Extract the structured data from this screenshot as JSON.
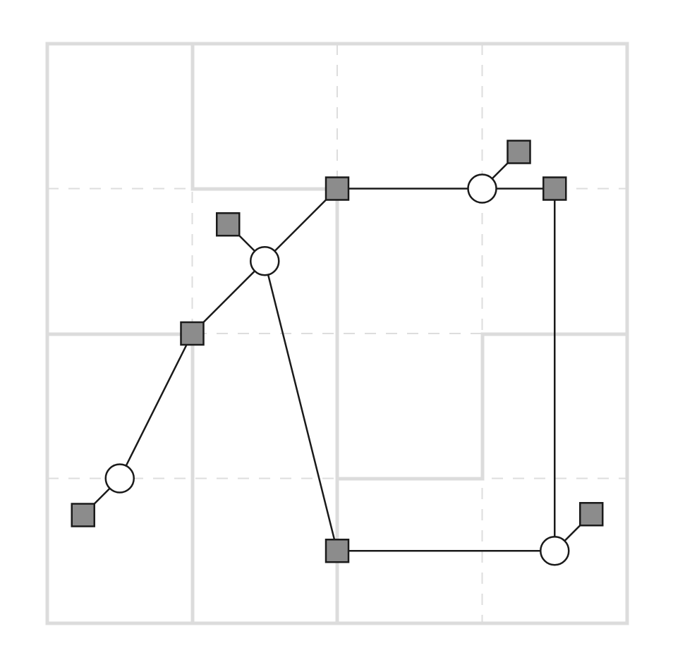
{
  "diagram": {
    "grid": {
      "columns": 4,
      "rows": 4
    },
    "colors": {
      "background": "#ffffff",
      "grid": "#dddddd",
      "walls": "#dcdcdc",
      "edges": "#1a1a1a",
      "square_fill": "#8c8c8c",
      "circle_fill": "#ffffff"
    },
    "nodes": [
      {
        "id": "s1",
        "shape": "square",
        "col": 2,
        "row": 1
      },
      {
        "id": "c1",
        "shape": "circle",
        "col": 3,
        "row": 1
      },
      {
        "id": "s2",
        "shape": "square",
        "col": 3.5,
        "row": 1
      },
      {
        "id": "c2",
        "shape": "circle",
        "col": 1.5,
        "row": 1.5
      },
      {
        "id": "s3",
        "shape": "square",
        "col": 1,
        "row": 2
      },
      {
        "id": "c3",
        "shape": "circle",
        "col": 0.5,
        "row": 3
      },
      {
        "id": "s4",
        "shape": "square",
        "col": 2,
        "row": 3.5
      },
      {
        "id": "c4",
        "shape": "circle",
        "col": 3.5,
        "row": 3.5
      }
    ],
    "edges": [
      [
        "s1",
        "c1"
      ],
      [
        "c1",
        "s2"
      ],
      [
        "s1",
        "c2"
      ],
      [
        "c2",
        "s3"
      ],
      [
        "s3",
        "c3"
      ],
      [
        "c2",
        "s4"
      ],
      [
        "s4",
        "c4"
      ],
      [
        "s2",
        "c4"
      ]
    ],
    "satellites": [
      {
        "circle": "c1",
        "direction": "up-right"
      },
      {
        "circle": "c2",
        "direction": "up-left"
      },
      {
        "circle": "c3",
        "direction": "down-left"
      },
      {
        "circle": "c4",
        "direction": "up-right"
      }
    ]
  }
}
